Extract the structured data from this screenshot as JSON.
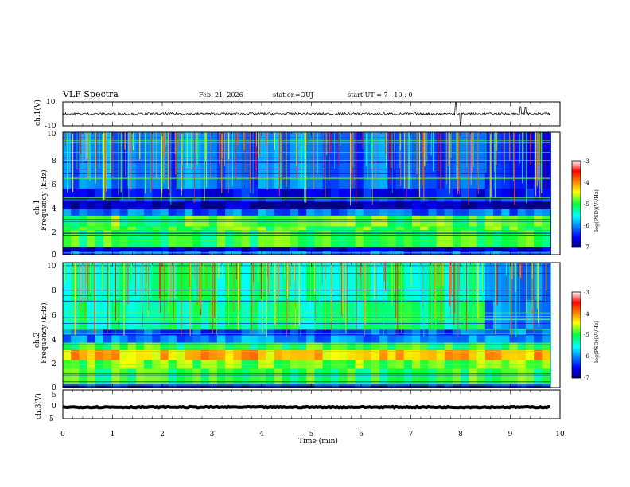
{
  "header": {
    "title": "VLF Spectra",
    "date": "Feb. 21, 2026",
    "station": "station=OUJ",
    "start_ut": "start UT =  7 : 10 : 0"
  },
  "chart_data": [
    {
      "type": "line",
      "panel": "ch1-waveform",
      "ylabel": "ch.1(V)",
      "ylim": [
        -10,
        10
      ],
      "yticks": [
        "10",
        "-10"
      ],
      "xlim": [
        0,
        10
      ],
      "series": [
        {
          "name": "ch.1",
          "baseline": 0,
          "noise_amplitude": 1,
          "spikes": [
            {
              "t": 7.9,
              "v": 10
            },
            {
              "t": 8.0,
              "v": -10
            },
            {
              "t": 9.2,
              "v": 6
            },
            {
              "t": 9.3,
              "v": 5
            }
          ]
        }
      ]
    },
    {
      "type": "heatmap",
      "panel": "ch1-spectrogram",
      "ylabel_line1": "ch.1",
      "ylabel_line2": "Frequency (kHz)",
      "ylim": [
        0,
        10
      ],
      "yticks": [
        "0",
        "2",
        "4",
        "6",
        "8",
        "10"
      ],
      "xlim": [
        0,
        9.8
      ],
      "colorbar": {
        "label": "log(PSD)(V²/Hz)",
        "range": [
          -7,
          -3
        ],
        "ticks": [
          "-3",
          "-4",
          "-5",
          "-6",
          "-7"
        ]
      },
      "bands": [
        {
          "f": [
            0,
            0.3
          ],
          "level": -6.2
        },
        {
          "f": [
            0.3,
            0.6
          ],
          "level": -6.8
        },
        {
          "f": [
            0.6,
            2.0
          ],
          "level": -5.0
        },
        {
          "f": [
            2.0,
            2.3
          ],
          "level": -4.9
        },
        {
          "f": [
            2.3,
            3.2
          ],
          "level": -4.9
        },
        {
          "f": [
            3.2,
            3.7
          ],
          "level": -6.1
        },
        {
          "f": [
            3.7,
            4.3
          ],
          "level": -6.9
        },
        {
          "f": [
            4.3,
            4.6
          ],
          "level": -6.6
        },
        {
          "f": [
            4.6,
            5.4
          ],
          "level": -6.5
        },
        {
          "f": [
            5.4,
            10.0
          ],
          "level": -6.1
        }
      ],
      "step_change": {
        "t": 8.4,
        "f_above": 4.3,
        "level": -6.5
      }
    },
    {
      "type": "heatmap",
      "panel": "ch2-spectrogram",
      "ylabel_line1": "ch.2",
      "ylabel_line2": "Frequency (kHz)",
      "ylim": [
        0,
        10
      ],
      "yticks": [
        "0",
        "2",
        "4",
        "6",
        "8",
        "10"
      ],
      "xlim": [
        0,
        9.8
      ],
      "colorbar": {
        "label": "log(PSD)(V²/Hz)",
        "range": [
          -7,
          -3
        ],
        "ticks": [
          "-3",
          "-4",
          "-5",
          "-6",
          "-7"
        ]
      },
      "bands": [
        {
          "f": [
            0,
            0.3
          ],
          "level": -6.6
        },
        {
          "f": [
            0.3,
            1.5
          ],
          "level": -5.0
        },
        {
          "f": [
            1.5,
            2.2
          ],
          "level": -4.8
        },
        {
          "f": [
            2.2,
            3.0
          ],
          "level": -4.2
        },
        {
          "f": [
            3.0,
            3.6
          ],
          "level": -5.0
        },
        {
          "f": [
            3.6,
            4.2
          ],
          "level": -6.0
        },
        {
          "f": [
            4.2,
            4.7
          ],
          "level": -6.2
        },
        {
          "f": [
            4.7,
            7.0
          ],
          "level": -5.2
        },
        {
          "f": [
            7.0,
            10.0
          ],
          "level": -5.3
        }
      ],
      "step_change": {
        "t": 8.4,
        "f_above": 3.6,
        "level": -6.0
      }
    },
    {
      "type": "line",
      "panel": "ch3-waveform",
      "ylabel": "ch.3(V)",
      "ylim": [
        -5,
        5
      ],
      "yticks": [
        "5",
        "0",
        "-5"
      ],
      "xlim": [
        0,
        10
      ],
      "xlabel": "Time (min)",
      "xticks": [
        "0",
        "1",
        "2",
        "3",
        "4",
        "5",
        "6",
        "7",
        "8",
        "9",
        "10"
      ],
      "series": [
        {
          "name": "ch.3",
          "baseline": -1,
          "noise_amplitude": 0.2
        }
      ]
    }
  ]
}
